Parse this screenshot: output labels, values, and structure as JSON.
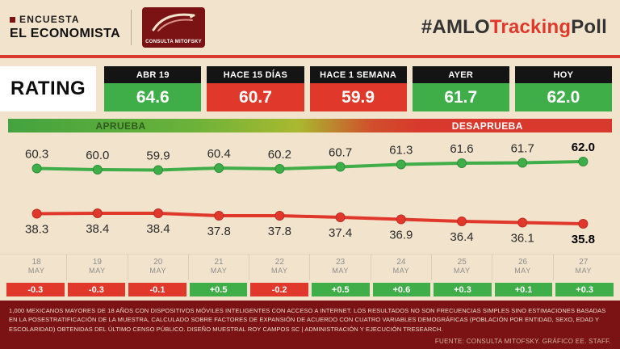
{
  "header": {
    "brand_top": "ENCUESTA",
    "brand_bottom": "EL ECONOMISTA",
    "logo_text": "CONSULTA MITOFSKY",
    "hashtag": {
      "prefix": "#AMLO",
      "highlight": "Tracking",
      "suffix": "Poll"
    }
  },
  "rating": {
    "label": "RATING",
    "boxes": [
      {
        "label": "ABR 19",
        "value": "64.6",
        "tone": "green"
      },
      {
        "label": "HACE 15 DÍAS",
        "value": "60.7",
        "tone": "red"
      },
      {
        "label": "HACE 1 SEMANA",
        "value": "59.9",
        "tone": "red"
      },
      {
        "label": "AYER",
        "value": "61.7",
        "tone": "green"
      },
      {
        "label": "HOY",
        "value": "62.0",
        "tone": "green"
      }
    ]
  },
  "legend": {
    "approve_label": "APRUEBA",
    "disapprove_label": "DESAPRUEBA"
  },
  "chart_data": {
    "type": "line",
    "title": "RATING #AMLOTrackingPoll",
    "x": [
      {
        "day": "18",
        "month": "MAY"
      },
      {
        "day": "19",
        "month": "MAY"
      },
      {
        "day": "20",
        "month": "MAY"
      },
      {
        "day": "21",
        "month": "MAY"
      },
      {
        "day": "22",
        "month": "MAY"
      },
      {
        "day": "23",
        "month": "MAY"
      },
      {
        "day": "24",
        "month": "MAY"
      },
      {
        "day": "25",
        "month": "MAY"
      },
      {
        "day": "26",
        "month": "MAY"
      },
      {
        "day": "27",
        "month": "MAY"
      }
    ],
    "series": [
      {
        "name": "APRUEBA",
        "color": "#3fae49",
        "stroke": "#2f8f3c",
        "values": [
          60.3,
          60.0,
          59.9,
          60.4,
          60.2,
          60.7,
          61.3,
          61.6,
          61.7,
          62.0
        ]
      },
      {
        "name": "DESAPRUEBA",
        "color": "#e0392c",
        "stroke": "#bf2d22",
        "values": [
          38.3,
          38.4,
          38.4,
          37.8,
          37.8,
          37.4,
          36.9,
          36.4,
          36.1,
          35.8
        ]
      }
    ],
    "daily_change": [
      "-0.3",
      "-0.3",
      "-0.1",
      "+0.5",
      "-0.2",
      "+0.5",
      "+0.6",
      "+0.3",
      "+0.1",
      "+0.3"
    ],
    "ylim_top": [
      59,
      63
    ],
    "ylim_bottom": [
      35,
      39
    ],
    "grid": false,
    "legend_position": "top"
  },
  "colors": {
    "green": "#3fae49",
    "red": "#e0392c",
    "dark": "#141414",
    "maroon": "#7b1214"
  },
  "footer": {
    "methodology": "1,000 MEXICANOS MAYORES DE 18 AÑOS CON DISPOSITIVOS MÓVILES INTELIGENTES CON ACCESO A INTERNET. LOS RESULTADOS NO SON FRECUENCIAS SIMPLES SINO ESTIMACIONES BASADAS EN LA POSESTRATIFICACIÓN DE LA MUESTRA, CALCULADO SOBRE FACTORES DE EXPANSIÓN DE ACUERDO CON CUATRO VARIABLES DEMOGRÁFICAS (POBLACIÓN POR ENTIDAD, SEXO, EDAD Y ESCOLARIDAD) OBTENIDAS DEL ÚLTIMO CENSO PÚBLICO. DISEÑO MUESTRAL ROY CAMPOS SC | ADMINISTRACIÓN Y EJECUCIÓN TRESEARCH.",
    "source": "FUENTE: CONSULTA MITOFSKY. GRÁFICO EE. STAFF."
  }
}
